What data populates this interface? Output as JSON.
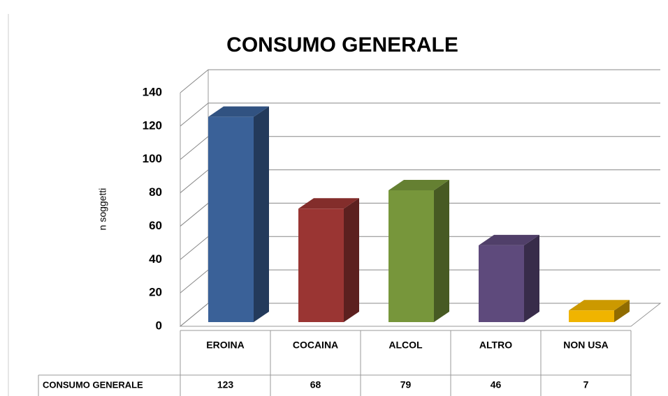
{
  "chart_data": {
    "type": "bar3d",
    "title": "CONSUMO GENERALE",
    "y_label": "n soggetti",
    "categories": [
      "EROINA",
      "COCAINA",
      "ALCOL",
      "ALTRO",
      "NON USA"
    ],
    "series": [
      {
        "name": "CONSUMO GENERALE",
        "values": [
          123,
          68,
          79,
          46,
          7
        ],
        "colors": [
          "#3a6198",
          "#9a3533",
          "#77963b",
          "#5e4a7c",
          "#f0b400"
        ]
      }
    ],
    "ylim": [
      0,
      140
    ],
    "yticks": [
      0,
      20,
      40,
      60,
      80,
      100,
      120,
      140
    ],
    "grid": true
  }
}
